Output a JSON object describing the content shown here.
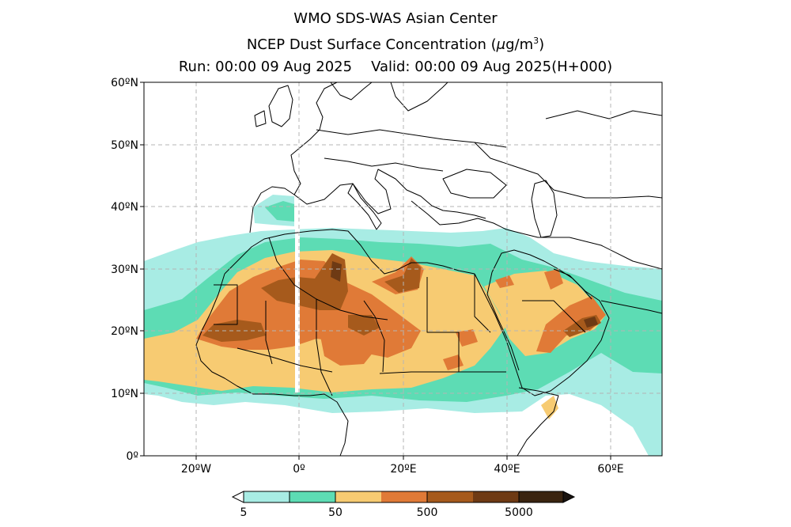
{
  "header": {
    "line1": "WMO SDS-WAS Asian Center",
    "line2_prefix": "NCEP Dust Surface Concentration (",
    "line2_unit_mu": "μ",
    "line2_unit_rest": "g/m",
    "line2_unit_sup": "3",
    "line2_suffix": ")",
    "run": "Run: 00:00 09 Aug 2025",
    "valid": "Valid: 00:00 09 Aug 2025(H+000)"
  },
  "axes": {
    "lat_labels": [
      "60ºN",
      "50ºN",
      "40ºN",
      "30ºN",
      "20ºN",
      "10ºN",
      "0º"
    ],
    "lon_labels": [
      "20ºW",
      "0º",
      "20ºE",
      "40ºE",
      "60ºE"
    ]
  },
  "colorbar": {
    "labels": [
      "5",
      "50",
      "500",
      "5000"
    ],
    "colors": [
      "#a8ece4",
      "#5ddcb4",
      "#f7cb72",
      "#e07a37",
      "#a65a1c",
      "#6e3a14",
      "#3a2410"
    ]
  },
  "palette": {
    "water": "#ffffff",
    "grid": "#b5b5b5",
    "coast": "#000000",
    "cyan": "#a8ece4",
    "teal": "#5ddcb4",
    "yellow": "#f7cb72",
    "orange": "#e07a37",
    "brown": "#a65a1c",
    "dark_brown": "#6e3a14"
  }
}
